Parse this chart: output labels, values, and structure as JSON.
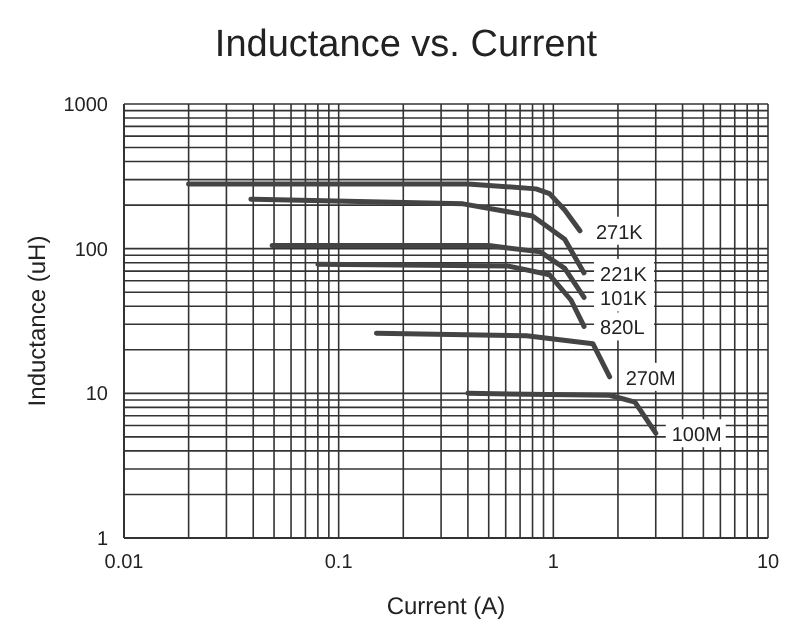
{
  "chart_data": {
    "type": "line",
    "title": "Inductance vs. Current",
    "xlabel": "Current (A)",
    "ylabel": "Inductance (uH)",
    "log": "xy",
    "grid": true,
    "marker": "none",
    "line_style": "solid",
    "xlim": [
      0.01,
      10
    ],
    "xticks": [
      0.01,
      0.1,
      1,
      10
    ],
    "ylim": [
      1,
      1000
    ],
    "yticks": [
      1,
      10,
      100,
      1000
    ],
    "series": [
      {
        "name": "271K",
        "color": "#444444",
        "x": [
          0.02,
          0.27,
          0.4,
          0.83,
          0.96,
          1.13,
          1.33
        ],
        "values": [
          280,
          280,
          280,
          259,
          240,
          185,
          133
        ]
      },
      {
        "name": "221K",
        "color": "#444444",
        "x": [
          0.039,
          0.38,
          0.8,
          1.13,
          1.39
        ],
        "values": [
          220,
          204,
          168,
          116,
          68
        ]
      },
      {
        "name": "101K",
        "color": "#444444",
        "x": [
          0.049,
          0.5,
          0.87,
          1.13,
          1.39
        ],
        "values": [
          105,
          105,
          95,
          73,
          46
        ]
      },
      {
        "name": "820L",
        "color": "#444444",
        "x": [
          0.08,
          0.61,
          0.96,
          1.21,
          1.39
        ],
        "values": [
          78,
          76,
          66,
          44,
          29
        ]
      },
      {
        "name": "270M",
        "color": "#444444",
        "x": [
          0.15,
          0.75,
          1.53,
          1.83
        ],
        "values": [
          26,
          25,
          22,
          13
        ]
      },
      {
        "name": "100M",
        "color": "#444444",
        "x": [
          0.4,
          1.83,
          2.4,
          3.0
        ],
        "values": [
          10,
          9.7,
          8.7,
          5.3
        ]
      }
    ]
  }
}
